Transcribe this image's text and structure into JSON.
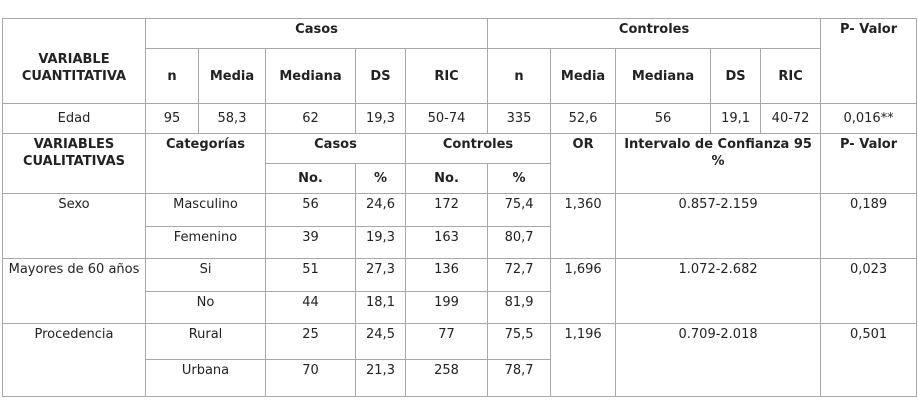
{
  "quantitative": {
    "header": {
      "variable": "VARIABLE CUANTITATIVA",
      "groups": [
        "Casos",
        "Controles"
      ],
      "p_value": "P- Valor",
      "columns": [
        "n",
        "Media",
        "Mediana",
        "DS",
        "RIC",
        "n",
        "Media",
        "Mediana",
        "DS",
        "RIC"
      ]
    },
    "rows": [
      [
        "Edad",
        "95",
        "58,3",
        "62",
        "19,3",
        "50-74",
        "335",
        "52,6",
        "56",
        "19,1",
        "40-72",
        "0,016**"
      ]
    ]
  },
  "qualitative": {
    "header": {
      "variable": "VARIABLES CUALITATIVAS",
      "categories": "Categorías",
      "casos": "Casos",
      "controles": "Controles",
      "or": "OR",
      "ci": "Intervalo de Confianza 95 %",
      "p_value": "P- Valor",
      "subcolumns": [
        "No.",
        "%",
        "No.",
        "%"
      ]
    },
    "groups": [
      {
        "variable": "Sexo",
        "or": "1,360",
        "ci": "0.857-2.159",
        "p": "0,189",
        "rows": [
          [
            "Masculino",
            "56",
            "24,6",
            "172",
            "75,4"
          ],
          [
            "Femenino",
            "39",
            "19,3",
            "163",
            "80,7"
          ]
        ]
      },
      {
        "variable": "Mayores de 60 años",
        "or": "1,696",
        "ci": "1.072-2.682",
        "p": "0,023",
        "rows": [
          [
            "Si",
            "51",
            "27,3",
            "136",
            "72,7"
          ],
          [
            "No",
            "44",
            "18,1",
            "199",
            "81,9"
          ]
        ]
      },
      {
        "variable": "Procedencia",
        "or": "1,196",
        "ci": "0.709-2.018",
        "p": "0,501",
        "rows": [
          [
            "Rural",
            "25",
            "24,5",
            "77",
            "75,5"
          ],
          [
            "Urbana",
            "70",
            "21,3",
            "258",
            "78,7"
          ]
        ]
      }
    ]
  }
}
